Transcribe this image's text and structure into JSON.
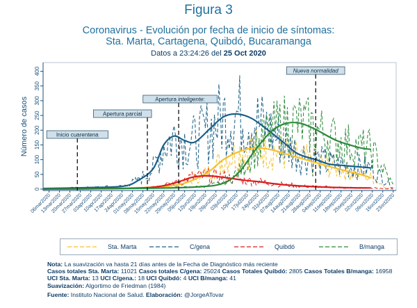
{
  "figure_label": "Figura 3",
  "subtitle_line1": "Coronavirus - Evolución por fecha de inicio de síntomas:",
  "subtitle_line2": "Sta. Marta, Cartagena, Quibdó, Bucaramanga",
  "datos_prefix": "Datos a 23:24:26 del",
  "datos_date": "25 Oct 2020",
  "colors": {
    "sta_marta": "#f5c02e",
    "cgena": "#1a5f86",
    "quibdo": "#d81e1e",
    "bmanga": "#2a8a3a",
    "axis": "#1a4f7a"
  },
  "chart_data": {
    "type": "line",
    "ylabel": "Número de casos",
    "xlabel": "",
    "ylim": [
      0,
      420
    ],
    "yticks": [
      0,
      50,
      100,
      150,
      200,
      250,
      300,
      350,
      400
    ],
    "x_range": [
      "2020-03-02",
      "2020-10-25"
    ],
    "xtick_labels": [
      "06mar2020",
      "13mar2020",
      "20mar2020",
      "27mar2020",
      "03apr2020",
      "10apr2020",
      "17apr2020",
      "24apr2020",
      "01may2020",
      "08may2020",
      "15may2020",
      "22may2020",
      "29may2020",
      "05jun2020",
      "12jun2020",
      "19jun2020",
      "26jun2020",
      "03jul2020",
      "10jul2020",
      "17jul2020",
      "24jul2020",
      "31jul2020",
      "07aug2020",
      "14aug2020",
      "21aug2020",
      "28aug2020",
      "04sep2020",
      "11sep2020",
      "18sep2020",
      "25sep2020",
      "02oct2020",
      "09oct2020",
      "16oct2020",
      "23oct2020"
    ],
    "annotations": [
      {
        "label": "Inicio cuarentena",
        "date": "2020-03-25"
      },
      {
        "label": "Apertura parcial",
        "date": "2020-05-11"
      },
      {
        "label_prefix": "Apertura ",
        "label_italic": "inteligente",
        "label_suffix": ":",
        "date": "2020-06-01"
      },
      {
        "label": "Nueva normalidad",
        "date": "2020-09-01"
      }
    ],
    "series": [
      {
        "name": "Sta. Marta",
        "key": "sta_marta",
        "smooth": [
          [
            "2020-03-02",
            0
          ],
          [
            "2020-04-01",
            2
          ],
          [
            "2020-05-01",
            4
          ],
          [
            "2020-05-20",
            8
          ],
          [
            "2020-06-05",
            20
          ],
          [
            "2020-06-20",
            55
          ],
          [
            "2020-07-01",
            100
          ],
          [
            "2020-07-12",
            128
          ],
          [
            "2020-07-22",
            140
          ],
          [
            "2020-08-01",
            135
          ],
          [
            "2020-08-15",
            115
          ],
          [
            "2020-09-01",
            90
          ],
          [
            "2020-09-15",
            70
          ],
          [
            "2020-10-01",
            50
          ],
          [
            "2020-10-08",
            38
          ]
        ]
      },
      {
        "name": "C/gena",
        "key": "cgena",
        "smooth": [
          [
            "2020-03-02",
            2
          ],
          [
            "2020-04-01",
            5
          ],
          [
            "2020-04-25",
            10
          ],
          [
            "2020-05-05",
            30
          ],
          [
            "2020-05-15",
            70
          ],
          [
            "2020-05-22",
            150
          ],
          [
            "2020-05-29",
            180
          ],
          [
            "2020-06-05",
            165
          ],
          [
            "2020-06-12",
            160
          ],
          [
            "2020-06-22",
            205
          ],
          [
            "2020-07-01",
            245
          ],
          [
            "2020-07-10",
            255
          ],
          [
            "2020-07-20",
            240
          ],
          [
            "2020-07-31",
            200
          ],
          [
            "2020-08-10",
            160
          ],
          [
            "2020-08-20",
            120
          ],
          [
            "2020-09-01",
            100
          ],
          [
            "2020-09-10",
            85
          ],
          [
            "2020-09-20",
            80
          ],
          [
            "2020-10-01",
            75
          ],
          [
            "2020-10-08",
            72
          ]
        ]
      },
      {
        "name": "Quibdó",
        "key": "quibdo",
        "smooth": [
          [
            "2020-03-02",
            0
          ],
          [
            "2020-05-01",
            3
          ],
          [
            "2020-05-20",
            10
          ],
          [
            "2020-06-01",
            25
          ],
          [
            "2020-06-10",
            40
          ],
          [
            "2020-06-20",
            45
          ],
          [
            "2020-07-01",
            40
          ],
          [
            "2020-07-15",
            30
          ],
          [
            "2020-07-25",
            25
          ],
          [
            "2020-08-10",
            15
          ],
          [
            "2020-09-01",
            8
          ],
          [
            "2020-09-20",
            5
          ],
          [
            "2020-10-08",
            4
          ]
        ]
      },
      {
        "name": "B/manga",
        "key": "bmanga",
        "smooth": [
          [
            "2020-03-02",
            0
          ],
          [
            "2020-05-15",
            3
          ],
          [
            "2020-06-15",
            8
          ],
          [
            "2020-07-01",
            20
          ],
          [
            "2020-07-12",
            60
          ],
          [
            "2020-07-22",
            130
          ],
          [
            "2020-08-01",
            190
          ],
          [
            "2020-08-10",
            220
          ],
          [
            "2020-08-20",
            225
          ],
          [
            "2020-08-31",
            205
          ],
          [
            "2020-09-15",
            165
          ],
          [
            "2020-10-01",
            140
          ],
          [
            "2020-10-08",
            135
          ]
        ]
      }
    ],
    "legend": [
      "Sta. Marta",
      "C/gena",
      "Quibdó",
      "B/manga"
    ],
    "legend_position": "bottom"
  },
  "notes": {
    "nota_label": "Nota:",
    "nota_text": "La suavización va hasta 21 días antes de la Fecha de Diagnóstico más reciente",
    "casos_sm_label": "Casos totales Sta. Marta:",
    "casos_sm_val": "11021",
    "casos_cg_label": "Casos totales C/gena:",
    "casos_cg_val": "25024",
    "casos_qb_label": "Casos Totales Quibdó:",
    "casos_qb_val": "2805",
    "casos_bm_label": "Casos Totales B/manga:",
    "casos_bm_val": "16958",
    "uci_sm_label": "UCI Sta. Marta:",
    "uci_sm_val": "13",
    "uci_cg_label": "UCI C/gena.:",
    "uci_cg_val": "18",
    "uci_qb_label": "UCI Quibdó:",
    "uci_qb_val": "4",
    "uci_bm_label": "UCI B/manga:",
    "uci_bm_val": "41",
    "suav_label": "Suavización:",
    "suav_text": "Algortimo de Friedman (1984)",
    "fuente_label": "Fuente:",
    "fuente_text": "Instituto Nacional de Salud.",
    "elab_label": "Elaboración:",
    "elab_text": "@JorgeATovar"
  }
}
